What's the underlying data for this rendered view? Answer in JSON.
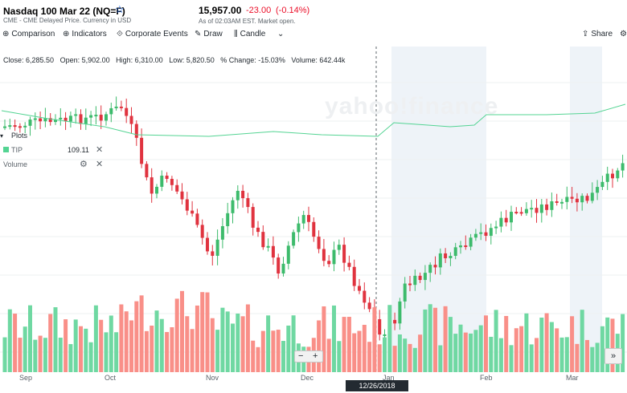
{
  "header": {
    "title": "Nasdaq 100 Mar 22 (NQ=F)",
    "subtitle": "CME - CME Delayed Price. Currency in USD",
    "price": "15,957.00",
    "change": "-23.00",
    "change_pct": "(-0.14%)",
    "as_of": "As of 02:03AM EST. Market open.",
    "star_icon": "star-outline-icon"
  },
  "toolbar": {
    "comparison": "Comparison",
    "indicators": "Indicators",
    "corporate_events": "Corporate Events",
    "draw": "Draw",
    "candle": "Candle",
    "share": "Share"
  },
  "ohlc": {
    "close": "Close: 6,285.50",
    "open": "Open: 5,902.00",
    "high": "High: 6,310.00",
    "low": "Low: 5,820.50",
    "change": "% Change: -15.03%",
    "volume": "Volume: 642.44k"
  },
  "overlays": {
    "plots_label": "Plots",
    "tip_label": "TIP",
    "tip_value": "109.11",
    "volume_label": "Volume"
  },
  "watermark": "yahoo!finance",
  "zoom": {
    "minus": "−",
    "plus": "+"
  },
  "scroll_button": "»",
  "crosshair_date": "12/26/2018",
  "x_labels": [
    "Sep",
    "Oct",
    "Nov",
    "Dec",
    "Jan",
    "Feb",
    "Mar"
  ],
  "colors": {
    "up": "#3dbb6c",
    "down": "#e0333f",
    "vol_up": "#6fd8a2",
    "vol_down": "#f98f88",
    "tip_line": "#54d493",
    "shade": "#eef3f8",
    "accent": "#0f69ff"
  }
}
